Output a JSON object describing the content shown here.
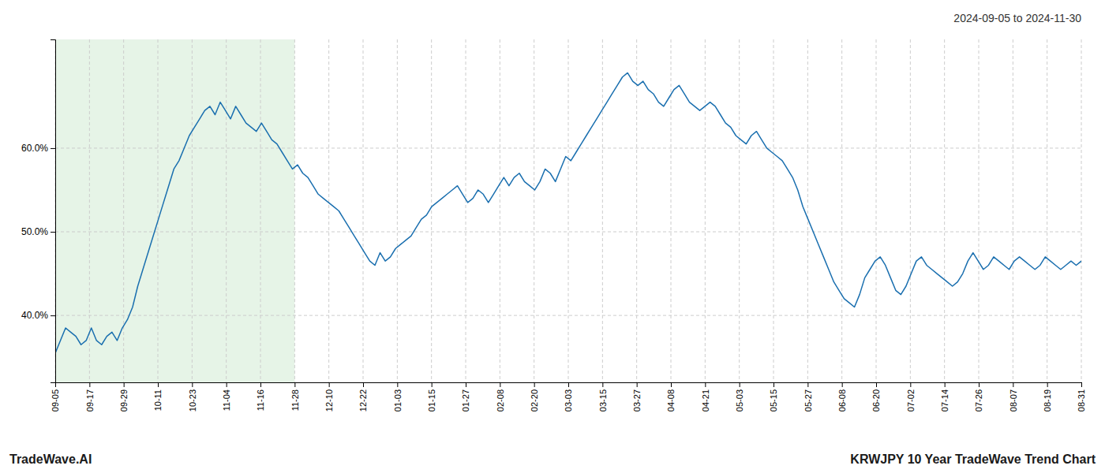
{
  "chart_data": {
    "type": "line",
    "title": "2024-09-05 to 2024-11-30",
    "annotations": [
      "TradeWave.AI",
      "KRWJPY 10 Year TradeWave Trend Chart"
    ],
    "color": "#1a6faf",
    "grid": true,
    "shaded_region": {
      "start": 0,
      "end": 7,
      "color": "#c8e6c9"
    },
    "xlim": [
      0,
      30
    ],
    "xticks": [
      {
        "value": 0,
        "label": "09-05"
      },
      {
        "value": 1,
        "label": "09-17"
      },
      {
        "value": 2,
        "label": "09-29"
      },
      {
        "value": 3,
        "label": "10-11"
      },
      {
        "value": 4,
        "label": "10-23"
      },
      {
        "value": 5,
        "label": "11-04"
      },
      {
        "value": 6,
        "label": "11-16"
      },
      {
        "value": 7,
        "label": "11-28"
      },
      {
        "value": 8,
        "label": "12-10"
      },
      {
        "value": 9,
        "label": "12-22"
      },
      {
        "value": 10,
        "label": "01-03"
      },
      {
        "value": 11,
        "label": "01-15"
      },
      {
        "value": 12,
        "label": "01-27"
      },
      {
        "value": 13,
        "label": "02-08"
      },
      {
        "value": 14,
        "label": "02-20"
      },
      {
        "value": 15,
        "label": "03-03"
      },
      {
        "value": 16,
        "label": "03-15"
      },
      {
        "value": 17,
        "label": "03-27"
      },
      {
        "value": 18,
        "label": "04-08"
      },
      {
        "value": 19,
        "label": "04-21"
      },
      {
        "value": 20,
        "label": "05-03"
      },
      {
        "value": 21,
        "label": "05-15"
      },
      {
        "value": 22,
        "label": "05-27"
      },
      {
        "value": 23,
        "label": "06-08"
      },
      {
        "value": 24,
        "label": "06-20"
      },
      {
        "value": 25,
        "label": "07-02"
      },
      {
        "value": 26,
        "label": "07-14"
      },
      {
        "value": 27,
        "label": "07-26"
      },
      {
        "value": 28,
        "label": "08-07"
      },
      {
        "value": 29,
        "label": "08-19"
      },
      {
        "value": 30,
        "label": "08-31"
      }
    ],
    "ylim": [
      32,
      73
    ],
    "yticks": [
      {
        "value": 40,
        "label": "40.0%"
      },
      {
        "value": 50,
        "label": "50.0%"
      },
      {
        "value": 60,
        "label": "60.0%"
      }
    ],
    "x": [
      0,
      0.150754,
      0.301508,
      0.452261,
      0.603015,
      0.753769,
      0.904523,
      1.055276,
      1.20603,
      1.356784,
      1.507538,
      1.658291,
      1.809045,
      1.959799,
      2.110553,
      2.261307,
      2.41206,
      2.562814,
      2.713568,
      2.864322,
      3.015075,
      3.165829,
      3.316583,
      3.467337,
      3.61809,
      3.768844,
      3.919598,
      4.070352,
      4.221106,
      4.371859,
      4.522613,
      4.673367,
      4.824121,
      4.974874,
      5.125628,
      5.276382,
      5.427136,
      5.577889,
      5.728643,
      5.879397,
      6.030151,
      6.180905,
      6.331658,
      6.482412,
      6.633166,
      6.78392,
      6.934673,
      7.085427,
      7.236181,
      7.386935,
      7.537688,
      7.688442,
      7.839196,
      7.98995,
      8.140704,
      8.291457,
      8.442211,
      8.592965,
      8.743719,
      8.894472,
      9.045226,
      9.19598,
      9.346734,
      9.497487,
      9.648241,
      9.798995,
      9.949749,
      10.100503,
      10.251256,
      10.40201,
      10.552764,
      10.703518,
      10.854271,
      11.005025,
      11.155779,
      11.306533,
      11.457286,
      11.60804,
      11.758794,
      11.909548,
      12.060302,
      12.211055,
      12.361809,
      12.512563,
      12.663317,
      12.81407,
      12.964824,
      13.115578,
      13.266332,
      13.417085,
      13.567839,
      13.718593,
      13.869347,
      14.020101,
      14.170854,
      14.321608,
      14.472362,
      14.623116,
      14.773869,
      14.924623,
      15.075377,
      15.226131,
      15.376884,
      15.527638,
      15.678392,
      15.829146,
      15.979899,
      16.130653,
      16.281407,
      16.432161,
      16.582915,
      16.733668,
      16.884422,
      17.035176,
      17.18593,
      17.336683,
      17.487437,
      17.638191,
      17.788945,
      17.939698,
      18.090452,
      18.241206,
      18.39196,
      18.542714,
      18.693467,
      18.844221,
      18.994975,
      19.145729,
      19.296482,
      19.447236,
      19.59799,
      19.748744,
      19.899497,
      20.050251,
      20.201005,
      20.351759,
      20.502513,
      20.653266,
      20.80402,
      20.954774,
      21.105528,
      21.256281,
      21.407035,
      21.557789,
      21.708543,
      21.859296,
      22.01005,
      22.160804,
      22.311558,
      22.462312,
      22.613065,
      22.763819,
      22.914573,
      23.065327,
      23.21608,
      23.366834,
      23.517588,
      23.668342,
      23.819095,
      23.969849,
      24.120603,
      24.271357,
      24.422111,
      24.572864,
      24.723618,
      24.874372,
      25.025126,
      25.175879,
      25.326633,
      25.477387,
      25.628141,
      25.778894,
      25.929648,
      26.080402,
      26.231156,
      26.38191,
      26.532663,
      26.683417,
      26.834171,
      26.984925,
      27.135678,
      27.286432,
      27.437186,
      27.58794,
      27.738693,
      27.889447,
      28.040201,
      28.190955,
      28.341709,
      28.492462,
      28.643216,
      28.79397,
      28.944724,
      29.095477,
      29.246231,
      29.396985,
      29.547739,
      29.698492,
      29.849246,
      30
    ],
    "values": [
      35.5,
      37.0,
      38.5,
      38.0,
      37.5,
      36.5,
      37.0,
      38.5,
      37.0,
      36.5,
      37.5,
      38.0,
      37.0,
      38.5,
      39.5,
      41.0,
      43.5,
      45.5,
      47.5,
      49.5,
      51.5,
      53.5,
      55.5,
      57.5,
      58.5,
      60.0,
      61.5,
      62.5,
      63.5,
      64.5,
      65.0,
      64.0,
      65.5,
      64.5,
      63.5,
      65.0,
      64.0,
      63.0,
      62.5,
      62.0,
      63.0,
      62.0,
      61.0,
      60.5,
      59.5,
      58.5,
      57.5,
      58.0,
      57.0,
      56.5,
      55.5,
      54.5,
      54.0,
      53.5,
      53.0,
      52.5,
      51.5,
      50.5,
      49.5,
      48.5,
      47.5,
      46.5,
      46.0,
      47.5,
      46.5,
      47.0,
      48.0,
      48.5,
      49.0,
      49.5,
      50.5,
      51.5,
      52.0,
      53.0,
      53.5,
      54.0,
      54.5,
      55.0,
      55.5,
      54.5,
      53.5,
      54.0,
      55.0,
      54.5,
      53.5,
      54.5,
      55.5,
      56.5,
      55.5,
      56.5,
      57.0,
      56.0,
      55.5,
      55.0,
      56.0,
      57.5,
      57.0,
      56.0,
      57.5,
      59.0,
      58.5,
      59.5,
      60.5,
      61.5,
      62.5,
      63.5,
      64.5,
      65.5,
      66.5,
      67.5,
      68.5,
      69.0,
      68.0,
      67.5,
      68.0,
      67.0,
      66.5,
      65.5,
      65.0,
      66.0,
      67.0,
      67.5,
      66.5,
      65.5,
      65.0,
      64.5,
      65.0,
      65.5,
      65.0,
      64.0,
      63.0,
      62.5,
      61.5,
      61.0,
      60.5,
      61.5,
      62.0,
      61.0,
      60.0,
      59.5,
      59.0,
      58.5,
      57.5,
      56.5,
      55.0,
      53.0,
      51.5,
      50.0,
      48.5,
      47.0,
      45.5,
      44.0,
      43.0,
      42.0,
      41.5,
      41.0,
      42.5,
      44.5,
      45.5,
      46.5,
      47.0,
      46.0,
      44.5,
      43.0,
      42.5,
      43.5,
      45.0,
      46.5,
      47.0,
      46.0,
      45.5,
      45.0,
      44.5,
      44.0,
      43.5,
      44.0,
      45.0,
      46.5,
      47.5,
      46.5,
      45.5,
      46.0,
      47.0,
      46.5,
      46.0,
      45.5,
      46.5,
      47.0,
      46.5,
      46.0,
      45.5,
      46.0,
      47.0,
      46.5,
      46.0,
      45.5,
      46.0,
      46.5,
      46.0,
      46.5
    ]
  }
}
